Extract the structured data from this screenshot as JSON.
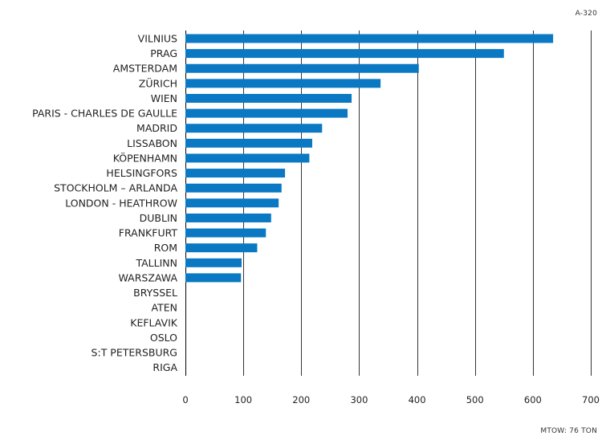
{
  "header": {
    "model_label": "A-320"
  },
  "footer": {
    "mtow_label": "MTOW: 76 TON"
  },
  "chart_data": {
    "type": "bar",
    "orientation": "horizontal",
    "title": "",
    "xlabel": "",
    "ylabel": "",
    "categories": [
      "VILNIUS",
      "PRAG",
      "AMSTERDAM",
      "ZÜRICH",
      "WIEN",
      "PARIS - CHARLES DE GAULLE",
      "MADRID",
      "LISSABON",
      "KÖPENHAMN",
      "HELSINGFORS",
      "STOCKHOLM – ARLANDA",
      "LONDON - HEATHROW",
      "DUBLIN",
      "FRANKFURT",
      "ROM",
      "TALLINN",
      "WARSZAWA",
      "BRYSSEL",
      "ATEN",
      "KEFLAVIK",
      "OSLO",
      "S:T PETERSBURG",
      "RIGA"
    ],
    "values": [
      635,
      550,
      403,
      337,
      287,
      280,
      236,
      219,
      214,
      172,
      166,
      161,
      148,
      139,
      124,
      97,
      96,
      0,
      0,
      0,
      0,
      0,
      0
    ],
    "xlim": [
      0,
      700
    ],
    "xticks": [
      "0",
      "100",
      "200",
      "300",
      "400",
      "500",
      "600",
      "700"
    ],
    "xtick_values": [
      0,
      100,
      200,
      300,
      400,
      500,
      600,
      700
    ],
    "grid": true,
    "legend": "none",
    "colors": {
      "bar": "#0a78c2",
      "grid": "#000000",
      "text": "#222222"
    }
  }
}
